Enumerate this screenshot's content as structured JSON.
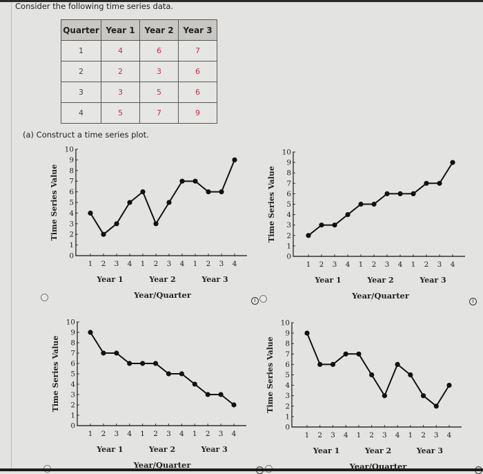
{
  "intro_text": "Consider the following time series data.",
  "table": {
    "headers": [
      "Quarter",
      "Year 1",
      "Year 2",
      "Year 3"
    ],
    "rows": [
      [
        "1",
        "4",
        "6",
        "7"
      ],
      [
        "2",
        "2",
        "3",
        "6"
      ],
      [
        "3",
        "3",
        "5",
        "6"
      ],
      [
        "4",
        "5",
        "7",
        "9"
      ]
    ],
    "value_color": "#c0304a"
  },
  "question": "(a)  Construct a time series plot.",
  "chart_data": [
    {
      "type": "line",
      "position": "top-left",
      "title": "",
      "xlabel": "Year/Quarter",
      "ylabel": "Time Series Value",
      "ylim": [
        0,
        10
      ],
      "yticks": [
        "0",
        "1",
        "2",
        "3",
        "4",
        "5",
        "6",
        "7",
        "8",
        "9",
        "10"
      ],
      "x_tick_labels": [
        "1",
        "2",
        "3",
        "4",
        "1",
        "2",
        "3",
        "4",
        "1",
        "2",
        "3",
        "4"
      ],
      "year_labels": [
        "Year 1",
        "Year 2",
        "Year 3"
      ],
      "values": [
        4,
        2,
        3,
        5,
        6,
        3,
        5,
        7,
        7,
        6,
        6,
        9
      ]
    },
    {
      "type": "line",
      "position": "top-right",
      "title": "",
      "xlabel": "Year/Quarter",
      "ylabel": "Time Series Value",
      "ylim": [
        0,
        10
      ],
      "yticks": [
        "0",
        "1",
        "2",
        "3",
        "4",
        "5",
        "6",
        "7",
        "8",
        "9",
        "10"
      ],
      "x_tick_labels": [
        "1",
        "2",
        "3",
        "4",
        "1",
        "2",
        "3",
        "4",
        "1",
        "2",
        "3",
        "4"
      ],
      "year_labels": [
        "Year 1",
        "Year 2",
        "Year 3"
      ],
      "values": [
        2,
        3,
        3,
        4,
        5,
        5,
        6,
        6,
        6,
        7,
        7,
        9
      ]
    },
    {
      "type": "line",
      "position": "bottom-left",
      "title": "",
      "xlabel": "Year/Quarter",
      "ylabel": "Time Series Value",
      "ylim": [
        0,
        10
      ],
      "yticks": [
        "0",
        "1",
        "2",
        "3",
        "4",
        "5",
        "6",
        "7",
        "8",
        "9",
        "10"
      ],
      "x_tick_labels": [
        "1",
        "2",
        "3",
        "4",
        "1",
        "2",
        "3",
        "4",
        "1",
        "2",
        "3",
        "4"
      ],
      "year_labels": [
        "Year 1",
        "Year 2",
        "Year 3"
      ],
      "values": [
        9,
        7,
        7,
        6,
        6,
        6,
        5,
        5,
        4,
        3,
        3,
        2
      ]
    },
    {
      "type": "line",
      "position": "bottom-right",
      "title": "",
      "xlabel": "Year/Quarter",
      "ylabel": "Time Series Value",
      "ylim": [
        0,
        10
      ],
      "yticks": [
        "0",
        "1",
        "2",
        "3",
        "4",
        "5",
        "6",
        "7",
        "8",
        "9",
        "10"
      ],
      "x_tick_labels": [
        "1",
        "2",
        "3",
        "4",
        "1",
        "2",
        "3",
        "4",
        "1",
        "2",
        "3",
        "4"
      ],
      "year_labels": [
        "Year 1",
        "Year 2",
        "Year 3"
      ],
      "values": [
        9,
        6,
        6,
        7,
        7,
        5,
        3,
        6,
        5,
        3,
        2,
        4
      ]
    }
  ],
  "options": [
    {
      "id": "option-a",
      "selected": false
    },
    {
      "id": "option-b",
      "selected": false
    },
    {
      "id": "option-c",
      "selected": false
    },
    {
      "id": "option-d",
      "selected": false
    }
  ],
  "info_icon_glyph": "i"
}
